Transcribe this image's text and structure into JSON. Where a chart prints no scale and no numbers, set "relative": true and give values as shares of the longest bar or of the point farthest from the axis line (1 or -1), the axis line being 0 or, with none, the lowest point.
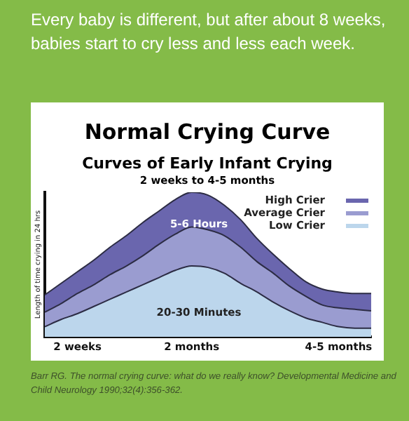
{
  "chart_data": {
    "type": "area",
    "title": "Normal Crying Curve",
    "subtitle": "Curves of Early Infant Crying",
    "ylabel": "Length of time crying in 24 hrs",
    "relative": true,
    "legend": "top right",
    "grid": false,
    "categories": [
      null,
      null,
      "2 weeks",
      null,
      null,
      null,
      null,
      null,
      null,
      "2 months",
      null,
      null,
      null,
      null,
      null,
      null,
      null,
      null,
      "4-5 months",
      null,
      null
    ],
    "series": [
      {
        "name": "High Crier",
        "color": "#6a66ae",
        "values": [
          0.29,
          0.37,
          0.45,
          0.53,
          0.62,
          0.7,
          0.79,
          0.87,
          0.95,
          1,
          0.98,
          0.91,
          0.81,
          0.68,
          0.57,
          0.47,
          0.38,
          0.33,
          0.31,
          0.3,
          0.3
        ]
      },
      {
        "name": "Average Crier",
        "color": "#9a9cd0",
        "values": [
          0.17,
          0.23,
          0.3,
          0.36,
          0.43,
          0.49,
          0.56,
          0.64,
          0.71,
          0.76,
          0.74,
          0.7,
          0.62,
          0.52,
          0.44,
          0.35,
          0.28,
          0.22,
          0.2,
          0.19,
          0.18
        ]
      },
      {
        "name": "Low Crier",
        "color": "#bcd6ec",
        "values": [
          0.07,
          0.12,
          0.16,
          0.21,
          0.26,
          0.31,
          0.36,
          0.41,
          0.46,
          0.49,
          0.48,
          0.44,
          0.37,
          0.31,
          0.24,
          0.18,
          0.13,
          0.1,
          0.07,
          0.06,
          0.06
        ]
      }
    ],
    "annotations": [
      "Every baby is different, but after about 8 weeks, babies start to cry less and less each week.",
      "2 weeks to 4-5 months",
      "5-6 Hours",
      "20-30 Minutes",
      "Barr RG. The normal crying curve: what do we really know? Developmental Medicine and Child Neurology 1990;32(4):356-362."
    ]
  }
}
